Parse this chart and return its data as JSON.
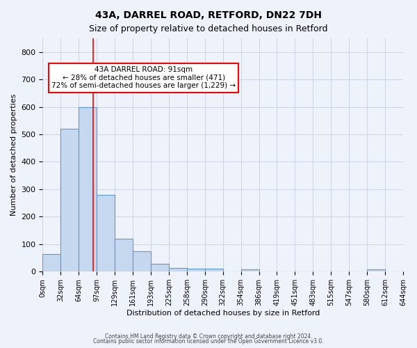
{
  "title1": "43A, DARREL ROAD, RETFORD, DN22 7DH",
  "title2": "Size of property relative to detached houses in Retford",
  "xlabel": "Distribution of detached houses by size in Retford",
  "ylabel": "Number of detached properties",
  "bin_labels": [
    "0sqm",
    "32sqm",
    "64sqm",
    "97sqm",
    "129sqm",
    "161sqm",
    "193sqm",
    "225sqm",
    "258sqm",
    "290sqm",
    "322sqm",
    "354sqm",
    "386sqm",
    "419sqm",
    "451sqm",
    "483sqm",
    "515sqm",
    "547sqm",
    "580sqm",
    "612sqm",
    "644sqm"
  ],
  "bar_heights": [
    65,
    520,
    600,
    280,
    120,
    75,
    28,
    13,
    10,
    10,
    0,
    8,
    0,
    0,
    0,
    0,
    0,
    0,
    8,
    0
  ],
  "bar_color": "#c5d8f0",
  "bar_edge_color": "#5b9bd5",
  "grid_color": "#d0d8e8",
  "background_color": "#eef2fa",
  "red_line_x": 2.75,
  "annotation_text": "43A DARREL ROAD: 91sqm\n← 28% of detached houses are smaller (471)\n72% of semi-detached houses are larger (1,229) →",
  "annotation_box_color": "white",
  "annotation_box_edge": "red",
  "footer1": "Contains HM Land Registry data © Crown copyright and database right 2024.",
  "footer2": "Contains public sector information licensed under the Open Government Licence v3.0.",
  "ylim": [
    0,
    850
  ],
  "yticks": [
    0,
    100,
    200,
    300,
    400,
    500,
    600,
    700,
    800
  ]
}
